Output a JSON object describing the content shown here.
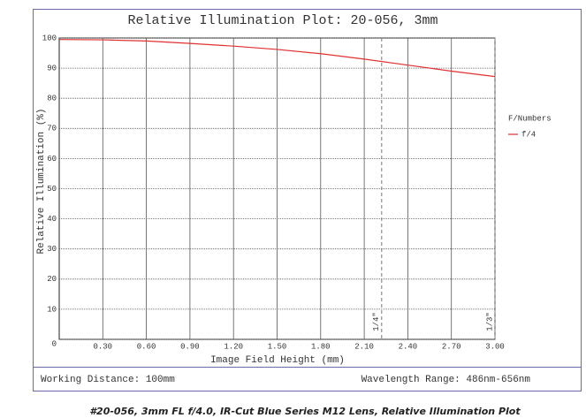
{
  "chart_data": {
    "type": "line",
    "title": "Relative Illumination Plot: 20-056, 3mm",
    "x_label": "Image Field Height (mm)",
    "y_label": "Relative Illumination (%)",
    "x": [
      0,
      0.3,
      0.6,
      0.9,
      1.2,
      1.5,
      1.8,
      2.1,
      2.4,
      2.7,
      3.0
    ],
    "series": [
      {
        "name": "f/4",
        "color": "#e03030",
        "values": [
          99.5,
          99.4,
          99.0,
          98.2,
          97.3,
          96.2,
          94.8,
          93.0,
          91.0,
          89.0,
          87.2
        ]
      }
    ],
    "legend_title": "F/Numbers",
    "xlim": [
      0,
      3
    ],
    "xticks": [
      {
        "value": 0.3,
        "label": "0.30"
      },
      {
        "value": 0.6,
        "label": "0.60"
      },
      {
        "value": 0.9,
        "label": "0.90"
      },
      {
        "value": 1.2,
        "label": "1.20"
      },
      {
        "value": 1.5,
        "label": "1.50"
      },
      {
        "value": 1.8,
        "label": "1.80"
      },
      {
        "value": 2.1,
        "label": "2.10"
      },
      {
        "value": 2.4,
        "label": "2.40"
      },
      {
        "value": 2.7,
        "label": "2.70"
      },
      {
        "value": 3.0,
        "label": "3.00"
      }
    ],
    "ylim": [
      0,
      100
    ],
    "yticks": [
      0,
      10,
      20,
      30,
      40,
      50,
      60,
      70,
      80,
      90,
      100
    ],
    "grid": true,
    "annotations": [
      {
        "x": 2.22,
        "label": "1/4\""
      },
      {
        "x": 3.0,
        "label": "1/3\""
      }
    ]
  },
  "footer": {
    "left": "Working Distance: 100mm",
    "right": "Wavelength Range: 486nm-656nm"
  },
  "caption": "#20-056, 3mm FL f/4.0, IR-Cut Blue Series M12 Lens, Relative Illumination Plot"
}
